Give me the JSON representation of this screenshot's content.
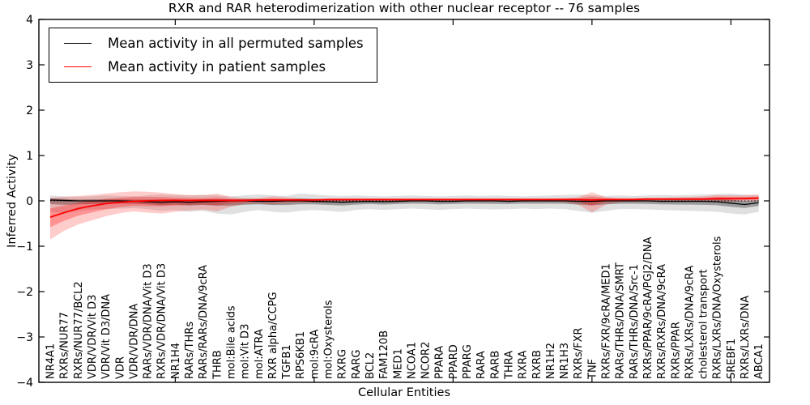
{
  "figure": {
    "title": "RXR and RAR heterodimerization with other nuclear receptor -- 76 samples",
    "background_color": "#ffffff"
  },
  "legend": {
    "items": [
      {
        "label": "Mean activity in all permuted samples",
        "color": "#000000"
      },
      {
        "label": "Mean activity in patient samples",
        "color": "#ff0000"
      }
    ]
  },
  "chart_data": {
    "type": "line",
    "title": "RXR and RAR heterodimerization with other nuclear receptor -- 76 samples",
    "xlabel": "Cellular Entities",
    "ylabel": "Inferred Activity",
    "ylim": [
      -4,
      4
    ],
    "yticks": [
      4,
      3,
      2,
      1,
      0,
      -1,
      -2,
      -3,
      -4
    ],
    "xtick_every": 10,
    "grid": false,
    "legend_position": "upper left",
    "zero_line": "dotted",
    "categories": [
      "NR4A1",
      "RXRs/NUR77",
      "RXRs/NUR77/BCL2",
      "VDR/VDR/Vit D3",
      "VDR/Vit D3/DNA",
      "VDR",
      "VDR/VDR/DNA",
      "RARs/VDR/DNA/Vit D3",
      "RXRs/VDR/DNA/Vit D3",
      "NR1H4",
      "RARs/THRs",
      "RARs/RARs/DNA/9cRA",
      "THRB",
      "mol:Bile acids",
      "mol:Vit D3",
      "mol:ATRA",
      "RXR alpha/CCPG",
      "TGFB1",
      "RPS6KB1",
      "mol:9cRA",
      "mol:Oxysterols",
      "RXRG",
      "RARG",
      "BCL2",
      "FAM120B",
      "MED1",
      "NCOA1",
      "NCOR2",
      "PPARA",
      "PPARD",
      "PPARG",
      "RARA",
      "RARB",
      "THRA",
      "RXRA",
      "RXRB",
      "NR1H2",
      "NR1H3",
      "RXRs/FXR",
      "TNF",
      "RXRs/FXR/9cRA/MED1",
      "RARs/THRs/DNA/SMRT",
      "RARs/THRs/DNA/Src-1",
      "RXRs/PPAR/9cRA/PGJ2/DNA",
      "RXRs/RXRs/DNA/9cRA",
      "RXRs/PPAR",
      "RXRs/LXRs/DNA/9cRA",
      "cholesterol transport",
      "RXRs/LXRs/DNA/Oxysterols",
      "SREBF1",
      "RXRs/LXRs/DNA",
      "ABCA1"
    ],
    "series": [
      {
        "name": "Mean activity in all permuted samples",
        "color": "#000000",
        "line_width": 1.3,
        "band_color": "rgba(0,0,0,0.12)",
        "band_color_inner": "rgba(0,0,0,0.30)",
        "inner_factor": 0.35,
        "values": [
          0.02,
          0.01,
          0.0,
          0.0,
          0.0,
          0.0,
          -0.01,
          -0.02,
          -0.03,
          -0.02,
          -0.03,
          -0.02,
          -0.01,
          0.0,
          0.0,
          -0.01,
          -0.01,
          0.0,
          0.0,
          -0.01,
          -0.02,
          -0.03,
          -0.02,
          -0.01,
          -0.02,
          -0.01,
          0.0,
          0.0,
          -0.01,
          -0.01,
          0.0,
          0.0,
          0.0,
          -0.01,
          0.0,
          0.0,
          0.0,
          0.0,
          -0.01,
          -0.01,
          0.0,
          0.0,
          0.0,
          0.0,
          -0.01,
          -0.01,
          -0.01,
          -0.01,
          -0.02,
          -0.05,
          -0.08,
          -0.04
        ],
        "band_hi": [
          0.12,
          0.1,
          0.09,
          0.1,
          0.12,
          0.11,
          0.1,
          0.12,
          0.14,
          0.13,
          0.12,
          0.14,
          0.12,
          0.1,
          0.12,
          0.14,
          0.12,
          0.11,
          0.16,
          0.14,
          0.12,
          0.11,
          0.12,
          0.11,
          0.1,
          0.11,
          0.12,
          0.11,
          0.1,
          0.11,
          0.12,
          0.11,
          0.12,
          0.11,
          0.1,
          0.11,
          0.12,
          0.13,
          0.14,
          0.12,
          0.11,
          0.12,
          0.11,
          0.12,
          0.13,
          0.12,
          0.13,
          0.14,
          0.15,
          0.16,
          0.14,
          0.12
        ],
        "band_lo": [
          -0.24,
          -0.27,
          -0.22,
          -0.19,
          -0.18,
          -0.17,
          -0.16,
          -0.18,
          -0.22,
          -0.2,
          -0.24,
          -0.22,
          -0.28,
          -0.3,
          -0.24,
          -0.2,
          -0.24,
          -0.26,
          -0.22,
          -0.2,
          -0.22,
          -0.24,
          -0.2,
          -0.18,
          -0.2,
          -0.18,
          -0.17,
          -0.18,
          -0.2,
          -0.18,
          -0.17,
          -0.18,
          -0.19,
          -0.18,
          -0.17,
          -0.18,
          -0.17,
          -0.18,
          -0.22,
          -0.26,
          -0.22,
          -0.18,
          -0.18,
          -0.19,
          -0.2,
          -0.21,
          -0.22,
          -0.23,
          -0.24,
          -0.28,
          -0.3,
          -0.24
        ]
      },
      {
        "name": "Mean activity in patient samples",
        "color": "#ff0000",
        "line_width": 1.8,
        "band_color": "rgba(255,0,0,0.20)",
        "band_color_inner": "rgba(255,0,0,0.28)",
        "inner_factor": 0.45,
        "values": [
          -0.36,
          -0.26,
          -0.17,
          -0.11,
          -0.06,
          -0.03,
          -0.01,
          0.0,
          0.01,
          0.01,
          0.01,
          0.01,
          0.01,
          0.01,
          0.01,
          0.02,
          0.02,
          0.02,
          0.02,
          0.02,
          0.03,
          0.03,
          0.03,
          0.03,
          0.03,
          0.03,
          0.03,
          0.03,
          0.03,
          0.03,
          0.03,
          0.03,
          0.03,
          0.03,
          0.03,
          0.03,
          0.03,
          0.03,
          0.03,
          0.02,
          0.03,
          0.03,
          0.03,
          0.04,
          0.04,
          0.04,
          0.04,
          0.04,
          0.05,
          0.05,
          0.05,
          0.06
        ],
        "band_hi": [
          0.07,
          0.09,
          0.11,
          0.13,
          0.16,
          0.19,
          0.21,
          0.2,
          0.18,
          0.15,
          0.13,
          0.12,
          0.16,
          0.09,
          0.06,
          0.06,
          0.1,
          0.08,
          0.05,
          0.05,
          0.04,
          0.04,
          0.04,
          0.04,
          0.05,
          0.04,
          0.04,
          0.04,
          0.04,
          0.04,
          0.05,
          0.05,
          0.05,
          0.05,
          0.05,
          0.05,
          0.05,
          0.06,
          0.08,
          0.19,
          0.08,
          0.06,
          0.06,
          0.07,
          0.07,
          0.08,
          0.09,
          0.1,
          0.13,
          0.12,
          0.12,
          0.14
        ],
        "band_lo": [
          -0.85,
          -0.66,
          -0.52,
          -0.43,
          -0.34,
          -0.27,
          -0.23,
          -0.26,
          -0.28,
          -0.24,
          -0.21,
          -0.19,
          -0.23,
          -0.13,
          -0.07,
          -0.06,
          -0.08,
          -0.06,
          -0.05,
          -0.04,
          -0.04,
          -0.03,
          -0.03,
          -0.03,
          -0.03,
          -0.03,
          -0.02,
          -0.02,
          -0.02,
          -0.02,
          -0.02,
          -0.02,
          -0.02,
          -0.02,
          -0.02,
          -0.02,
          -0.02,
          -0.03,
          -0.08,
          -0.26,
          -0.08,
          -0.03,
          -0.02,
          -0.02,
          -0.02,
          -0.02,
          -0.02,
          -0.02,
          -0.02,
          -0.02,
          -0.01,
          -0.01
        ]
      }
    ]
  }
}
